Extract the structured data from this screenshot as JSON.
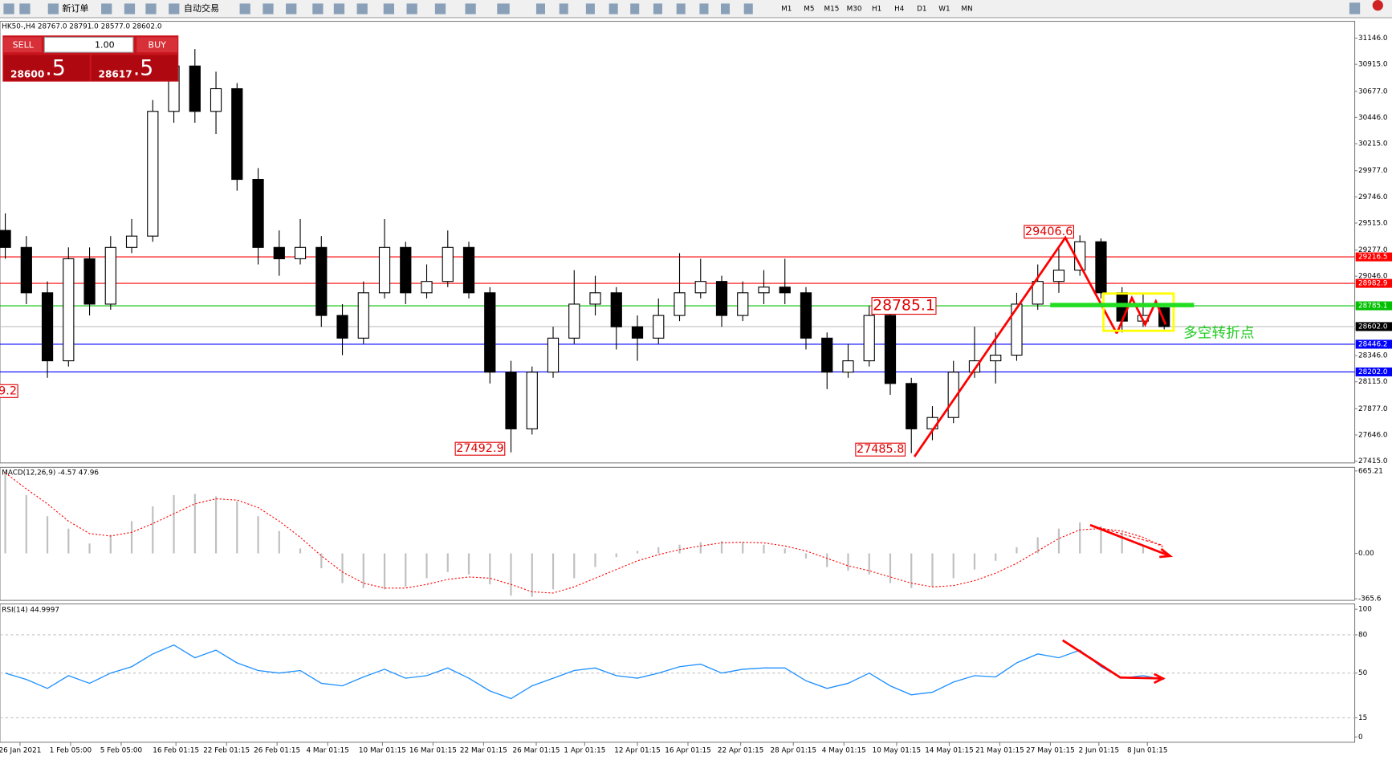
{
  "toolbar": {
    "new_order": "新订单",
    "auto_trade": "自动交易",
    "timeframes": [
      "M1",
      "M5",
      "M15",
      "M30",
      "H1",
      "H4",
      "D1",
      "W1",
      "MN"
    ]
  },
  "trade_panel": {
    "sell": "SELL",
    "buy": "BUY",
    "lots": "1.00",
    "bid_main": "28600",
    "bid_frac": ".5",
    "ask_main": "28617",
    "ask_frac": ".5"
  },
  "chart_data": [
    {
      "type": "candlestick",
      "title": "HK50-,H4  28767.0 28791.0 28577.0 28602.0",
      "up_color": "#ffffff",
      "down_color": "#000000",
      "candles": [
        [
          29450,
          29600,
          29200,
          29300
        ],
        [
          29300,
          29400,
          28800,
          28900
        ],
        [
          28900,
          29000,
          28150,
          28300
        ],
        [
          28300,
          29300,
          28250,
          29200
        ],
        [
          29200,
          29300,
          28700,
          28800
        ],
        [
          28800,
          29400,
          28750,
          29300
        ],
        [
          29300,
          29550,
          29250,
          29400
        ],
        [
          29400,
          30600,
          29350,
          30500
        ],
        [
          30500,
          31000,
          30400,
          30900
        ],
        [
          30900,
          31050,
          30400,
          30500
        ],
        [
          30500,
          30850,
          30300,
          30700
        ],
        [
          30700,
          30750,
          29800,
          29900
        ],
        [
          29900,
          30000,
          29150,
          29300
        ],
        [
          29300,
          29450,
          29050,
          29200
        ],
        [
          29200,
          29550,
          29150,
          29300
        ],
        [
          29300,
          29400,
          28600,
          28700
        ],
        [
          28700,
          28800,
          28350,
          28500
        ],
        [
          28500,
          29000,
          28450,
          28900
        ],
        [
          28900,
          29550,
          28850,
          29300
        ],
        [
          29300,
          29350,
          28800,
          28900
        ],
        [
          28900,
          29150,
          28850,
          29000
        ],
        [
          29000,
          29450,
          28950,
          29300
        ],
        [
          29300,
          29350,
          28850,
          28900
        ],
        [
          28900,
          28950,
          28100,
          28200
        ],
        [
          28200,
          28300,
          27492.9,
          27700
        ],
        [
          27700,
          28250,
          27650,
          28200
        ],
        [
          28200,
          28600,
          28150,
          28500
        ],
        [
          28500,
          29100,
          28450,
          28800
        ],
        [
          28800,
          29050,
          28700,
          28900
        ],
        [
          28900,
          28950,
          28400,
          28600
        ],
        [
          28600,
          28700,
          28300,
          28500
        ],
        [
          28500,
          28850,
          28450,
          28700
        ],
        [
          28700,
          29250,
          28650,
          28900
        ],
        [
          28900,
          29200,
          28850,
          29000
        ],
        [
          29000,
          29050,
          28600,
          28700
        ],
        [
          28700,
          29000,
          28650,
          28900
        ],
        [
          28900,
          29100,
          28800,
          28950
        ],
        [
          28950,
          29200,
          28800,
          28900
        ],
        [
          28900,
          28950,
          28400,
          28500
        ],
        [
          28500,
          28550,
          28050,
          28200
        ],
        [
          28200,
          28450,
          28150,
          28300
        ],
        [
          28300,
          28785.1,
          28250,
          28700
        ],
        [
          28700,
          28750,
          28000,
          28100
        ],
        [
          28100,
          28150,
          27485.8,
          27700
        ],
        [
          27700,
          27900,
          27600,
          27800
        ],
        [
          27800,
          28300,
          27750,
          28200
        ],
        [
          28200,
          28600,
          28150,
          28300
        ],
        [
          28300,
          28550,
          28100,
          28350
        ],
        [
          28350,
          28900,
          28300,
          28800
        ],
        [
          28800,
          29150,
          28750,
          29000
        ],
        [
          29000,
          29300,
          28900,
          29100
        ],
        [
          29100,
          29406.6,
          29050,
          29350
        ],
        [
          29350,
          29380,
          28850,
          28900
        ],
        [
          28900,
          28950,
          28550,
          28650
        ],
        [
          28650,
          28900,
          28600,
          28700
        ],
        [
          28767,
          28791,
          28577,
          28602
        ]
      ],
      "xlim": [
        -0.25,
        64
      ],
      "xticks": [
        {
          "value": 0.7,
          "label": "26 Jan 2021"
        },
        {
          "value": 3.1,
          "label": "1 Feb 05:00"
        },
        {
          "value": 5.5,
          "label": "5 Feb 05:00"
        },
        {
          "value": 8.1,
          "label": "16 Feb 01:15"
        },
        {
          "value": 10.5,
          "label": "22 Feb 01:15"
        },
        {
          "value": 12.9,
          "label": "26 Feb 01:15"
        },
        {
          "value": 15.3,
          "label": "4 Mar 01:15"
        },
        {
          "value": 17.9,
          "label": "10 Mar 01:15"
        },
        {
          "value": 20.3,
          "label": "16 Mar 01:15"
        },
        {
          "value": 22.7,
          "label": "22 Mar 01:15"
        },
        {
          "value": 25.2,
          "label": "26 Mar 01:15"
        },
        {
          "value": 27.5,
          "label": "1 Apr 01:15"
        },
        {
          "value": 30,
          "label": "12 Apr 01:15"
        },
        {
          "value": 32.4,
          "label": "16 Apr 01:15"
        },
        {
          "value": 34.9,
          "label": "22 Apr 01:15"
        },
        {
          "value": 37.4,
          "label": "28 Apr 01:15"
        },
        {
          "value": 39.8,
          "label": "4 May 01:15"
        },
        {
          "value": 42.3,
          "label": "10 May 01:15"
        },
        {
          "value": 44.8,
          "label": "14 May 01:15"
        },
        {
          "value": 47.2,
          "label": "21 May 01:15"
        },
        {
          "value": 49.6,
          "label": "27 May 01:15"
        },
        {
          "value": 51.9,
          "label": "2 Jun 01:15"
        },
        {
          "value": 54.2,
          "label": "8 Jun 01:15"
        }
      ],
      "ylim": [
        27399.4,
        31294.6
      ],
      "yticks": [
        {
          "value": 31146,
          "label": "31146.0"
        },
        {
          "value": 30915,
          "label": "30915.0"
        },
        {
          "value": 30677,
          "label": "30677.0"
        },
        {
          "value": 30446,
          "label": "30446.0"
        },
        {
          "value": 30215,
          "label": "30215.0"
        },
        {
          "value": 29977,
          "label": "29977.0"
        },
        {
          "value": 29746,
          "label": "29746.0"
        },
        {
          "value": 29515,
          "label": "29515.0"
        },
        {
          "value": 29277,
          "label": "29277.0"
        },
        {
          "value": 29046,
          "label": "29046.0"
        },
        {
          "value": 28346,
          "label": "28346.0"
        },
        {
          "value": 28115,
          "label": "28115.0"
        },
        {
          "value": 27877,
          "label": "27877.0"
        },
        {
          "value": 27646,
          "label": "27646.0"
        },
        {
          "value": 27415,
          "label": "27415.0"
        }
      ],
      "levels": [
        {
          "value": 29216.5,
          "label": "29216.5",
          "color": "#ff0000"
        },
        {
          "value": 28982.9,
          "label": "28982.9",
          "color": "#ff0000"
        },
        {
          "value": 28785.1,
          "label": "28785.1",
          "color": "#00c000"
        },
        {
          "value": 28602,
          "label": "28602.0",
          "color": "#000000"
        },
        {
          "value": 28446.2,
          "label": "28446.2",
          "color": "#0000ff"
        },
        {
          "value": 28202,
          "label": "28202.0",
          "color": "#0000ff"
        }
      ],
      "annotations": [
        {
          "label": "29406.6",
          "value": 29406.6,
          "index": 51
        },
        {
          "label": "28785.1",
          "value": 28785.1,
          "index": 41
        },
        {
          "label": "27492.9",
          "value": 27492.9,
          "index": 24
        },
        {
          "label": "27485.8",
          "value": 27485.8,
          "index": 43
        },
        {
          "label": "9.2"
        }
      ],
      "note": "多空转折点"
    },
    {
      "type": "macd",
      "title": "MACD(12,26,9) -4.57 47.96",
      "values": [
        640,
        470,
        300,
        200,
        80,
        150,
        260,
        380,
        470,
        480,
        460,
        420,
        300,
        180,
        40,
        -120,
        -240,
        -280,
        -290,
        -270,
        -200,
        -150,
        -170,
        -250,
        -340,
        -350,
        -290,
        -200,
        -110,
        -30,
        20,
        50,
        70,
        90,
        100,
        90,
        70,
        40,
        -40,
        -110,
        -140,
        -170,
        -240,
        -280,
        -270,
        -200,
        -130,
        -60,
        50,
        130,
        200,
        250,
        220,
        170,
        60,
        -4.57
      ],
      "color": "#c0c0c0",
      "signal": {
        "values": [
          650,
          520,
          400,
          260,
          160,
          140,
          170,
          240,
          320,
          400,
          440,
          430,
          370,
          260,
          130,
          -20,
          -150,
          -240,
          -280,
          -280,
          -250,
          -210,
          -190,
          -200,
          -250,
          -310,
          -320,
          -270,
          -200,
          -130,
          -60,
          -10,
          30,
          60,
          85,
          90,
          85,
          60,
          20,
          -40,
          -100,
          -140,
          -190,
          -240,
          -270,
          -260,
          -220,
          -160,
          -80,
          20,
          120,
          190,
          200,
          180,
          130,
          47.96
        ],
        "color": "#ff0000"
      },
      "ylim": [
        -379,
        694
      ],
      "yticks": [
        665.21,
        {
          "value": 0,
          "label": "0.00"
        },
        -365.6
      ]
    },
    {
      "type": "line",
      "title": "RSI(14) 44.9997",
      "values": [
        50,
        45,
        38,
        48,
        42,
        50,
        55,
        65,
        72,
        62,
        68,
        58,
        52,
        50,
        52,
        42,
        40,
        47,
        53,
        46,
        48,
        54,
        46,
        36,
        30,
        40,
        46,
        52,
        54,
        48,
        46,
        50,
        55,
        57,
        50,
        53,
        54,
        54,
        44,
        38,
        42,
        50,
        40,
        33,
        35,
        43,
        48,
        47,
        58,
        65,
        62,
        68,
        55,
        46,
        48,
        44.9997
      ],
      "color": "#1e90ff",
      "grid": true,
      "ylim": [
        0,
        100
      ],
      "yticks": [
        100,
        80,
        50,
        15,
        0
      ]
    }
  ]
}
